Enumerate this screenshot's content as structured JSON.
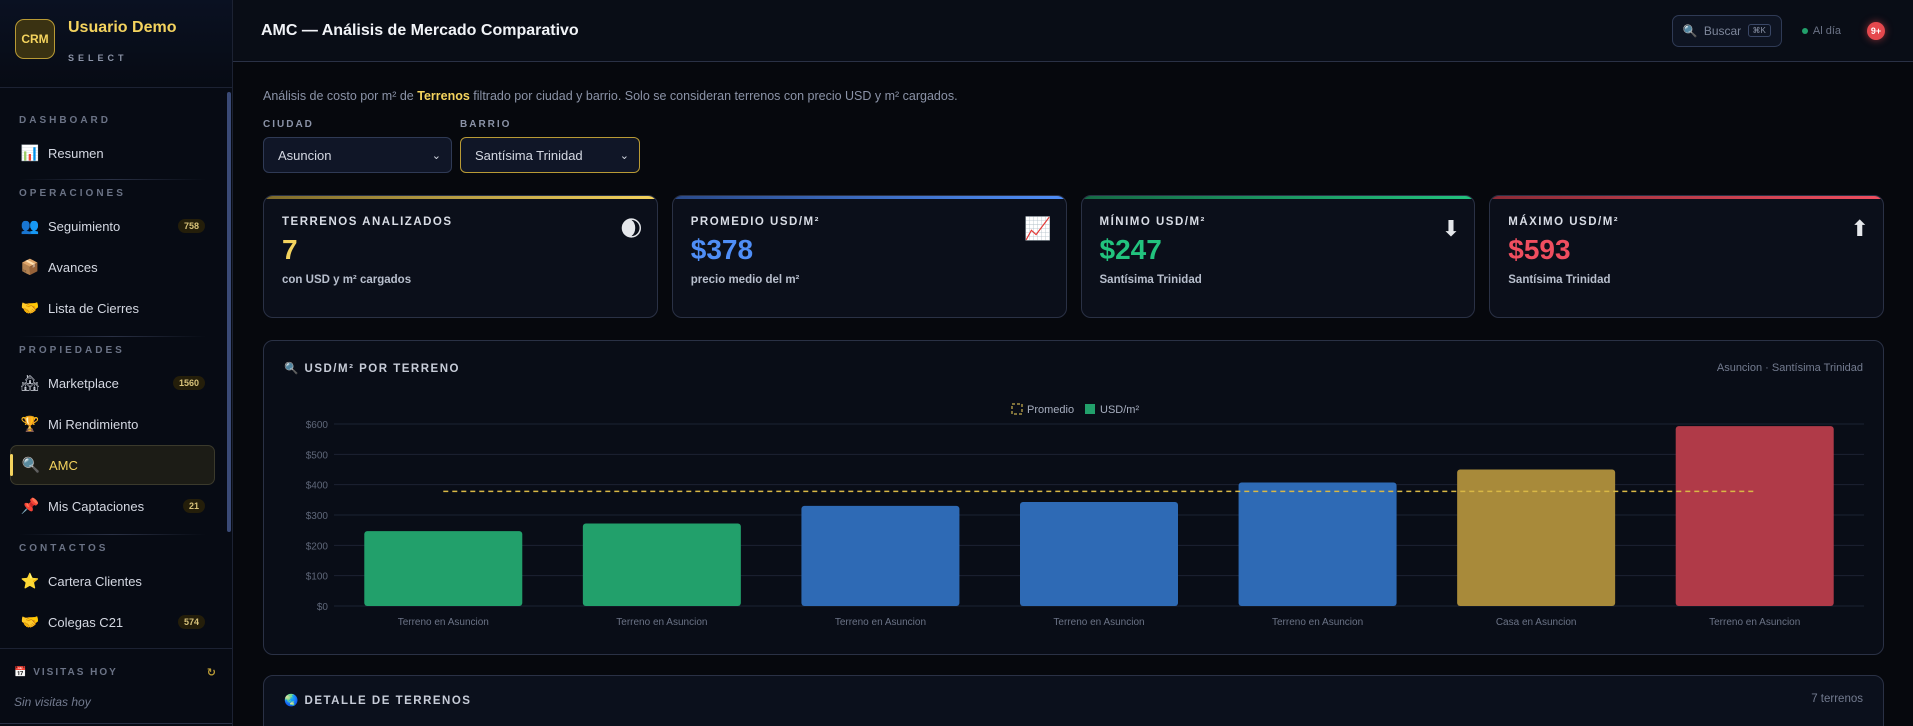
{
  "brand": {
    "logo": "CRM",
    "name": "Usuario Demo",
    "subtitle": "SELECT"
  },
  "sidebar": {
    "sections": [
      {
        "label": "DASHBOARD",
        "items": [
          {
            "icon": "bar-chart-icon",
            "glyph": "📊",
            "label": "Resumen"
          }
        ]
      },
      {
        "label": "OPERACIONES",
        "items": [
          {
            "icon": "people-icon",
            "glyph": "👥",
            "label": "Seguimiento",
            "badge": "758"
          },
          {
            "icon": "box-icon",
            "glyph": "📦",
            "label": "Avances"
          },
          {
            "icon": "handshake-icon",
            "glyph": "🤝",
            "label": "Lista de Cierres"
          }
        ]
      },
      {
        "label": "PROPIEDADES",
        "items": [
          {
            "icon": "house-icon",
            "glyph": "🏘",
            "label": "Marketplace",
            "badge": "1560"
          },
          {
            "icon": "trophy-icon",
            "glyph": "🏆",
            "label": "Mi Rendimiento"
          },
          {
            "icon": "magnifier-icon",
            "glyph": "🔍",
            "label": "AMC",
            "active": true
          },
          {
            "icon": "pin-icon",
            "glyph": "📌",
            "label": "Mis Captaciones",
            "badge": "21"
          }
        ]
      },
      {
        "label": "CONTACTOS",
        "items": [
          {
            "icon": "star-icon",
            "glyph": "⭐",
            "label": "Cartera Clientes"
          },
          {
            "icon": "handshake-icon",
            "glyph": "🤝",
            "label": "Colegas C21",
            "badge": "574"
          }
        ]
      }
    ],
    "visits": {
      "label": "VISITAS HOY",
      "empty": "Sin visitas hoy"
    }
  },
  "topbar": {
    "title": "AMC — Análisis de Mercado Comparativo",
    "search_label": "Buscar",
    "search_kbd": "⌘K",
    "status": "Al día",
    "notifications": "9+"
  },
  "description": {
    "prefix": "Análisis de costo por m² de ",
    "highlight": "Terrenos",
    "suffix": " filtrado por ciudad y barrio. Solo se consideran terrenos con precio USD y m² cargados."
  },
  "filters": {
    "city": {
      "label": "CIUDAD",
      "value": "Asuncion"
    },
    "neighborhood": {
      "label": "BARRIO",
      "value": "Santísima Trinidad"
    }
  },
  "kpis": [
    {
      "label": "TERRENOS ANALIZADOS",
      "value": "7",
      "sub": "con USD y m² cargados",
      "color": "#f4d35e",
      "icon": "moon-icon",
      "glyph": "🌒"
    },
    {
      "label": "PROMEDIO USD/M²",
      "value": "$378",
      "sub": "precio medio del m²",
      "color": "#4f8ef7",
      "icon": "chart-up-icon",
      "glyph": "📈"
    },
    {
      "label": "MÍNIMO USD/M²",
      "value": "$247",
      "sub": "Santísima Trinidad",
      "color": "#22c37e",
      "icon": "arrow-down-icon",
      "glyph": "⬇"
    },
    {
      "label": "MÁXIMO USD/M²",
      "value": "$593",
      "sub": "Santísima Trinidad",
      "color": "#ef4e5f",
      "icon": "arrow-up-icon",
      "glyph": "⬆"
    }
  ],
  "chart": {
    "title": "USD/M² POR TERRENO",
    "meta": "Asuncion · Santísima Trinidad",
    "legend": [
      "Promedio",
      "USD/m²"
    ]
  },
  "chart_data": {
    "type": "bar",
    "categories": [
      "Terreno en Asuncion",
      "Terreno en Asuncion",
      "Terreno en Asuncion",
      "Terreno en Asuncion",
      "Terreno en Asuncion",
      "Casa en Asuncion",
      "Terreno en Asuncion"
    ],
    "values": [
      247,
      272,
      330,
      343,
      407,
      450,
      593
    ],
    "bar_colors": [
      "#22a06b",
      "#22a06b",
      "#2e6ab5",
      "#2e6ab5",
      "#2e6ab5",
      "#a88a3a",
      "#b03a48"
    ],
    "average": 378,
    "ylim": [
      0,
      600
    ],
    "yticks": [
      "$0",
      "$100",
      "$200",
      "$300",
      "$400",
      "$500",
      "$600"
    ],
    "series": [
      {
        "name": "USD/m²",
        "values": [
          247,
          272,
          330,
          343,
          407,
          450,
          593
        ]
      }
    ],
    "reference_line": {
      "name": "Promedio",
      "value": 378,
      "color": "#f4d35e"
    }
  },
  "detail": {
    "title": "DETALLE DE TERRENOS",
    "count": "7 terrenos"
  },
  "colors": {
    "accent": "#f4d35e",
    "background": "#06080d",
    "green": "#22a06b",
    "blue": "#2e6ab5",
    "red": "#b03a48"
  }
}
